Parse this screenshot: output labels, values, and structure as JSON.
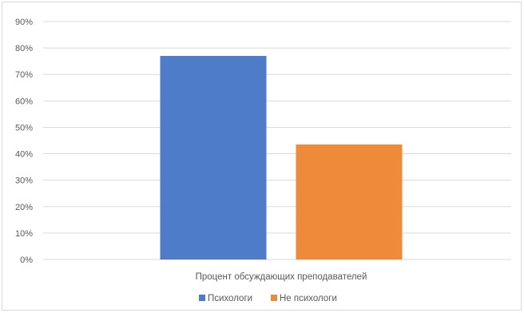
{
  "chart_data": {
    "type": "bar",
    "categories": [
      "Процент обсуждающих преподавателей"
    ],
    "series": [
      {
        "name": "Психологи",
        "values": [
          0.77
        ],
        "color": "#4e7cc9"
      },
      {
        "name": "Не психологи",
        "values": [
          0.435
        ],
        "color": "#ef8a3a"
      }
    ],
    "ylim": [
      0,
      0.9
    ],
    "yticks": [
      0,
      0.1,
      0.2,
      0.3,
      0.4,
      0.5,
      0.6,
      0.7,
      0.8,
      0.9
    ],
    "ytick_labels": [
      "0%",
      "10%",
      "20%",
      "30%",
      "40%",
      "50%",
      "60%",
      "70%",
      "80%",
      "90%"
    ],
    "grid": true,
    "gridline_color": "#d9d9d9",
    "legend": "bottom",
    "title": "",
    "xlabel": "",
    "ylabel": ""
  }
}
